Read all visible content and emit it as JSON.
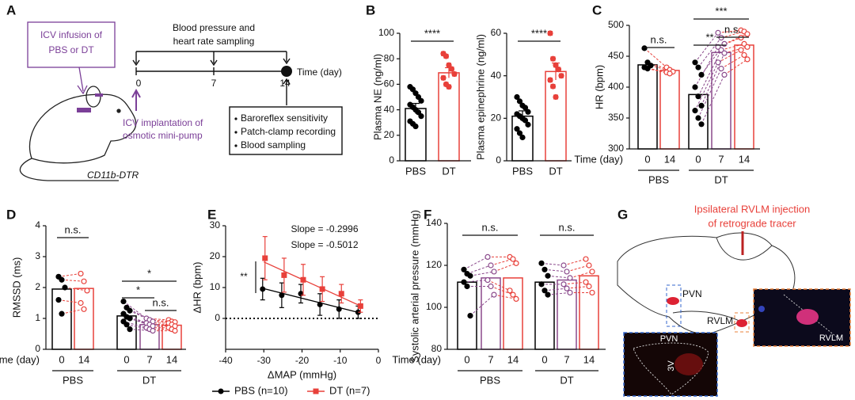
{
  "panel_labels": [
    "A",
    "B",
    "C",
    "D",
    "E",
    "F",
    "G"
  ],
  "diagram_a": {
    "infusion": [
      "ICV infusion of",
      "PBS or DT"
    ],
    "sampling": [
      "Blood pressure and",
      "heart rate sampling"
    ],
    "timeline": {
      "ticks": [
        "0",
        "7",
        "14"
      ],
      "label": "Time (day)"
    },
    "implantation": [
      "ICV implantation of",
      "osmotic mini-pump"
    ],
    "strain": "CD11b-DTR",
    "procedures": [
      "Baroreflex sensitivity",
      "Patch-clamp recording",
      "Blood sampling"
    ]
  },
  "chart_data": [
    {
      "type": "bar",
      "ylabel": "Plasma NE (ng/ml)",
      "categories": [
        "PBS",
        "DT"
      ],
      "values": [
        41,
        69
      ],
      "errors": [
        4,
        4
      ],
      "colors": [
        "#000000",
        "#e8403a"
      ],
      "points": [
        [
          58,
          56,
          53,
          50,
          47,
          44,
          42,
          40,
          38,
          35,
          31,
          29,
          27
        ],
        [
          84,
          82,
          75,
          72,
          68,
          65,
          60,
          58
        ]
      ],
      "ylim": [
        0,
        100
      ],
      "yticks": [
        0,
        20,
        40,
        60,
        80,
        100
      ],
      "annotations": [
        "****"
      ]
    },
    {
      "type": "bar",
      "ylabel": "Plasma epinephrine (ng/ml)",
      "categories": [
        "PBS",
        "DT"
      ],
      "values": [
        21,
        42
      ],
      "errors": [
        2.5,
        4
      ],
      "colors": [
        "#000000",
        "#e8403a"
      ],
      "points": [
        [
          30,
          28,
          26,
          25,
          23,
          22,
          21,
          20,
          19,
          17,
          15,
          13,
          11
        ],
        [
          60,
          48,
          45,
          43,
          40,
          38,
          35,
          30
        ]
      ],
      "ylim": [
        0,
        60
      ],
      "yticks": [
        0,
        20,
        40,
        60
      ],
      "annotations": [
        "****"
      ]
    },
    {
      "type": "bar",
      "ylabel": "HR (bpm)",
      "xlabel": "Time (day)",
      "groups": [
        {
          "name": "PBS",
          "categories": [
            "0",
            "14"
          ],
          "values": [
            436,
            427
          ],
          "colors": [
            "#000000",
            "#e8403a"
          ],
          "points": [
            [
              463,
              440,
              435,
              432,
              430
            ],
            [
              432,
              428,
              425,
              424,
              422
            ]
          ]
        },
        {
          "name": "DT",
          "categories": [
            "0",
            "7",
            "14"
          ],
          "values": [
            388,
            456,
            468
          ],
          "colors": [
            "#000000",
            "#8b4a8c",
            "#e8403a"
          ],
          "points": [
            [
              440,
              432,
              420,
              400,
              385,
              370,
              362,
              350,
              340
            ],
            [
              488,
              480,
              470,
              465,
              460,
              455,
              440,
              430,
              420
            ],
            [
              492,
              490,
              486,
              480,
              470,
              465,
              460,
              452,
              445
            ]
          ]
        }
      ],
      "ylim": [
        300,
        500
      ],
      "yticks": [
        300,
        350,
        400,
        450,
        500
      ],
      "annotations": [
        "n.s.",
        "**",
        "***",
        "n.s."
      ]
    },
    {
      "type": "bar",
      "ylabel": "RMSSD (ms)",
      "xlabel": "Time (day)",
      "groups": [
        {
          "name": "PBS",
          "categories": [
            "0",
            "14"
          ],
          "values": [
            1.95,
            1.97
          ],
          "colors": [
            "#000000",
            "#e8403a"
          ],
          "points": [
            [
              2.35,
              2.25,
              2.0,
              1.6,
              1.15
            ],
            [
              2.45,
              2.2,
              1.9,
              1.5,
              1.3
            ]
          ]
        },
        {
          "name": "DT",
          "categories": [
            "0",
            "7",
            "14"
          ],
          "values": [
            1.08,
            0.8,
            0.78
          ],
          "colors": [
            "#000000",
            "#8b4a8c",
            "#e8403a"
          ],
          "points": [
            [
              1.55,
              1.35,
              1.25,
              1.15,
              1.05,
              1.0,
              0.9,
              0.8,
              0.65
            ],
            [
              1.0,
              0.95,
              0.9,
              0.85,
              0.8,
              0.75,
              0.7,
              0.65,
              0.6
            ],
            [
              0.95,
              0.9,
              0.88,
              0.85,
              0.8,
              0.75,
              0.7,
              0.65,
              0.6
            ]
          ]
        }
      ],
      "ylim": [
        0,
        4
      ],
      "yticks": [
        0,
        1,
        2,
        3,
        4
      ],
      "annotations": [
        "n.s.",
        "*",
        "*",
        "n.s."
      ]
    },
    {
      "type": "line",
      "xlabel": "ΔMAP (mmHg)",
      "ylabel": "ΔHR (bpm)",
      "x": [
        -30,
        -25,
        -20,
        -15,
        -10,
        -5
      ],
      "series": [
        {
          "name": "PBS (n=10)",
          "color": "#000000",
          "values": [
            9.5,
            7.5,
            8,
            4.5,
            3,
            2
          ],
          "errors": [
            3.5,
            4,
            3,
            3.5,
            3,
            2
          ]
        },
        {
          "name": "DT (n=7)",
          "color": "#e8403a",
          "values": [
            19.5,
            14,
            12.5,
            9.5,
            8,
            4
          ],
          "errors": [
            7,
            5.5,
            5,
            4,
            3,
            2
          ]
        }
      ],
      "xlim": [
        -40,
        0
      ],
      "xticks": [
        -40,
        -30,
        -20,
        -10,
        0
      ],
      "ylim": [
        -10,
        30
      ],
      "yticks": [
        0,
        10,
        20,
        30
      ],
      "annotations": [
        "Slope = -0.2996",
        "Slope = -0.5012",
        "**"
      ]
    },
    {
      "type": "bar",
      "ylabel": "Systolic arterial pressure (mmHg)",
      "xlabel": "Time (day)",
      "groups": [
        {
          "name": "PBS",
          "categories": [
            "0",
            "7",
            "14"
          ],
          "values": [
            112,
            114,
            114
          ],
          "colors": [
            "#000000",
            "#8b4a8c",
            "#e8403a"
          ],
          "points": [
            [
              118,
              116,
              115,
              112,
              110,
              96
            ],
            [
              124,
              120,
              117,
              113,
              110,
              106
            ],
            [
              124,
              123,
              121,
              108,
              106,
              104
            ]
          ]
        },
        {
          "name": "DT",
          "categories": [
            "0",
            "7",
            "14"
          ],
          "values": [
            112,
            113,
            115
          ],
          "colors": [
            "#000000",
            "#8b4a8c",
            "#e8403a"
          ],
          "points": [
            [
              121,
              118,
              115,
              111,
              108,
              106
            ],
            [
              120,
              117,
              114,
              111,
              109,
              107
            ],
            [
              123,
              120,
              117,
              112,
              110,
              107
            ]
          ]
        }
      ],
      "ylim": [
        80,
        140
      ],
      "yticks": [
        80,
        100,
        120,
        140
      ],
      "annotations": [
        "n.s.",
        "n.s."
      ]
    }
  ],
  "panel_g": {
    "title": [
      "Ipsilateral RVLM injection",
      "of retrograde tracer"
    ],
    "labels": [
      "PVN",
      "RVLM"
    ],
    "inset_pvn": [
      "PVN",
      "3V"
    ],
    "inset_rvlm": "RVLM"
  }
}
